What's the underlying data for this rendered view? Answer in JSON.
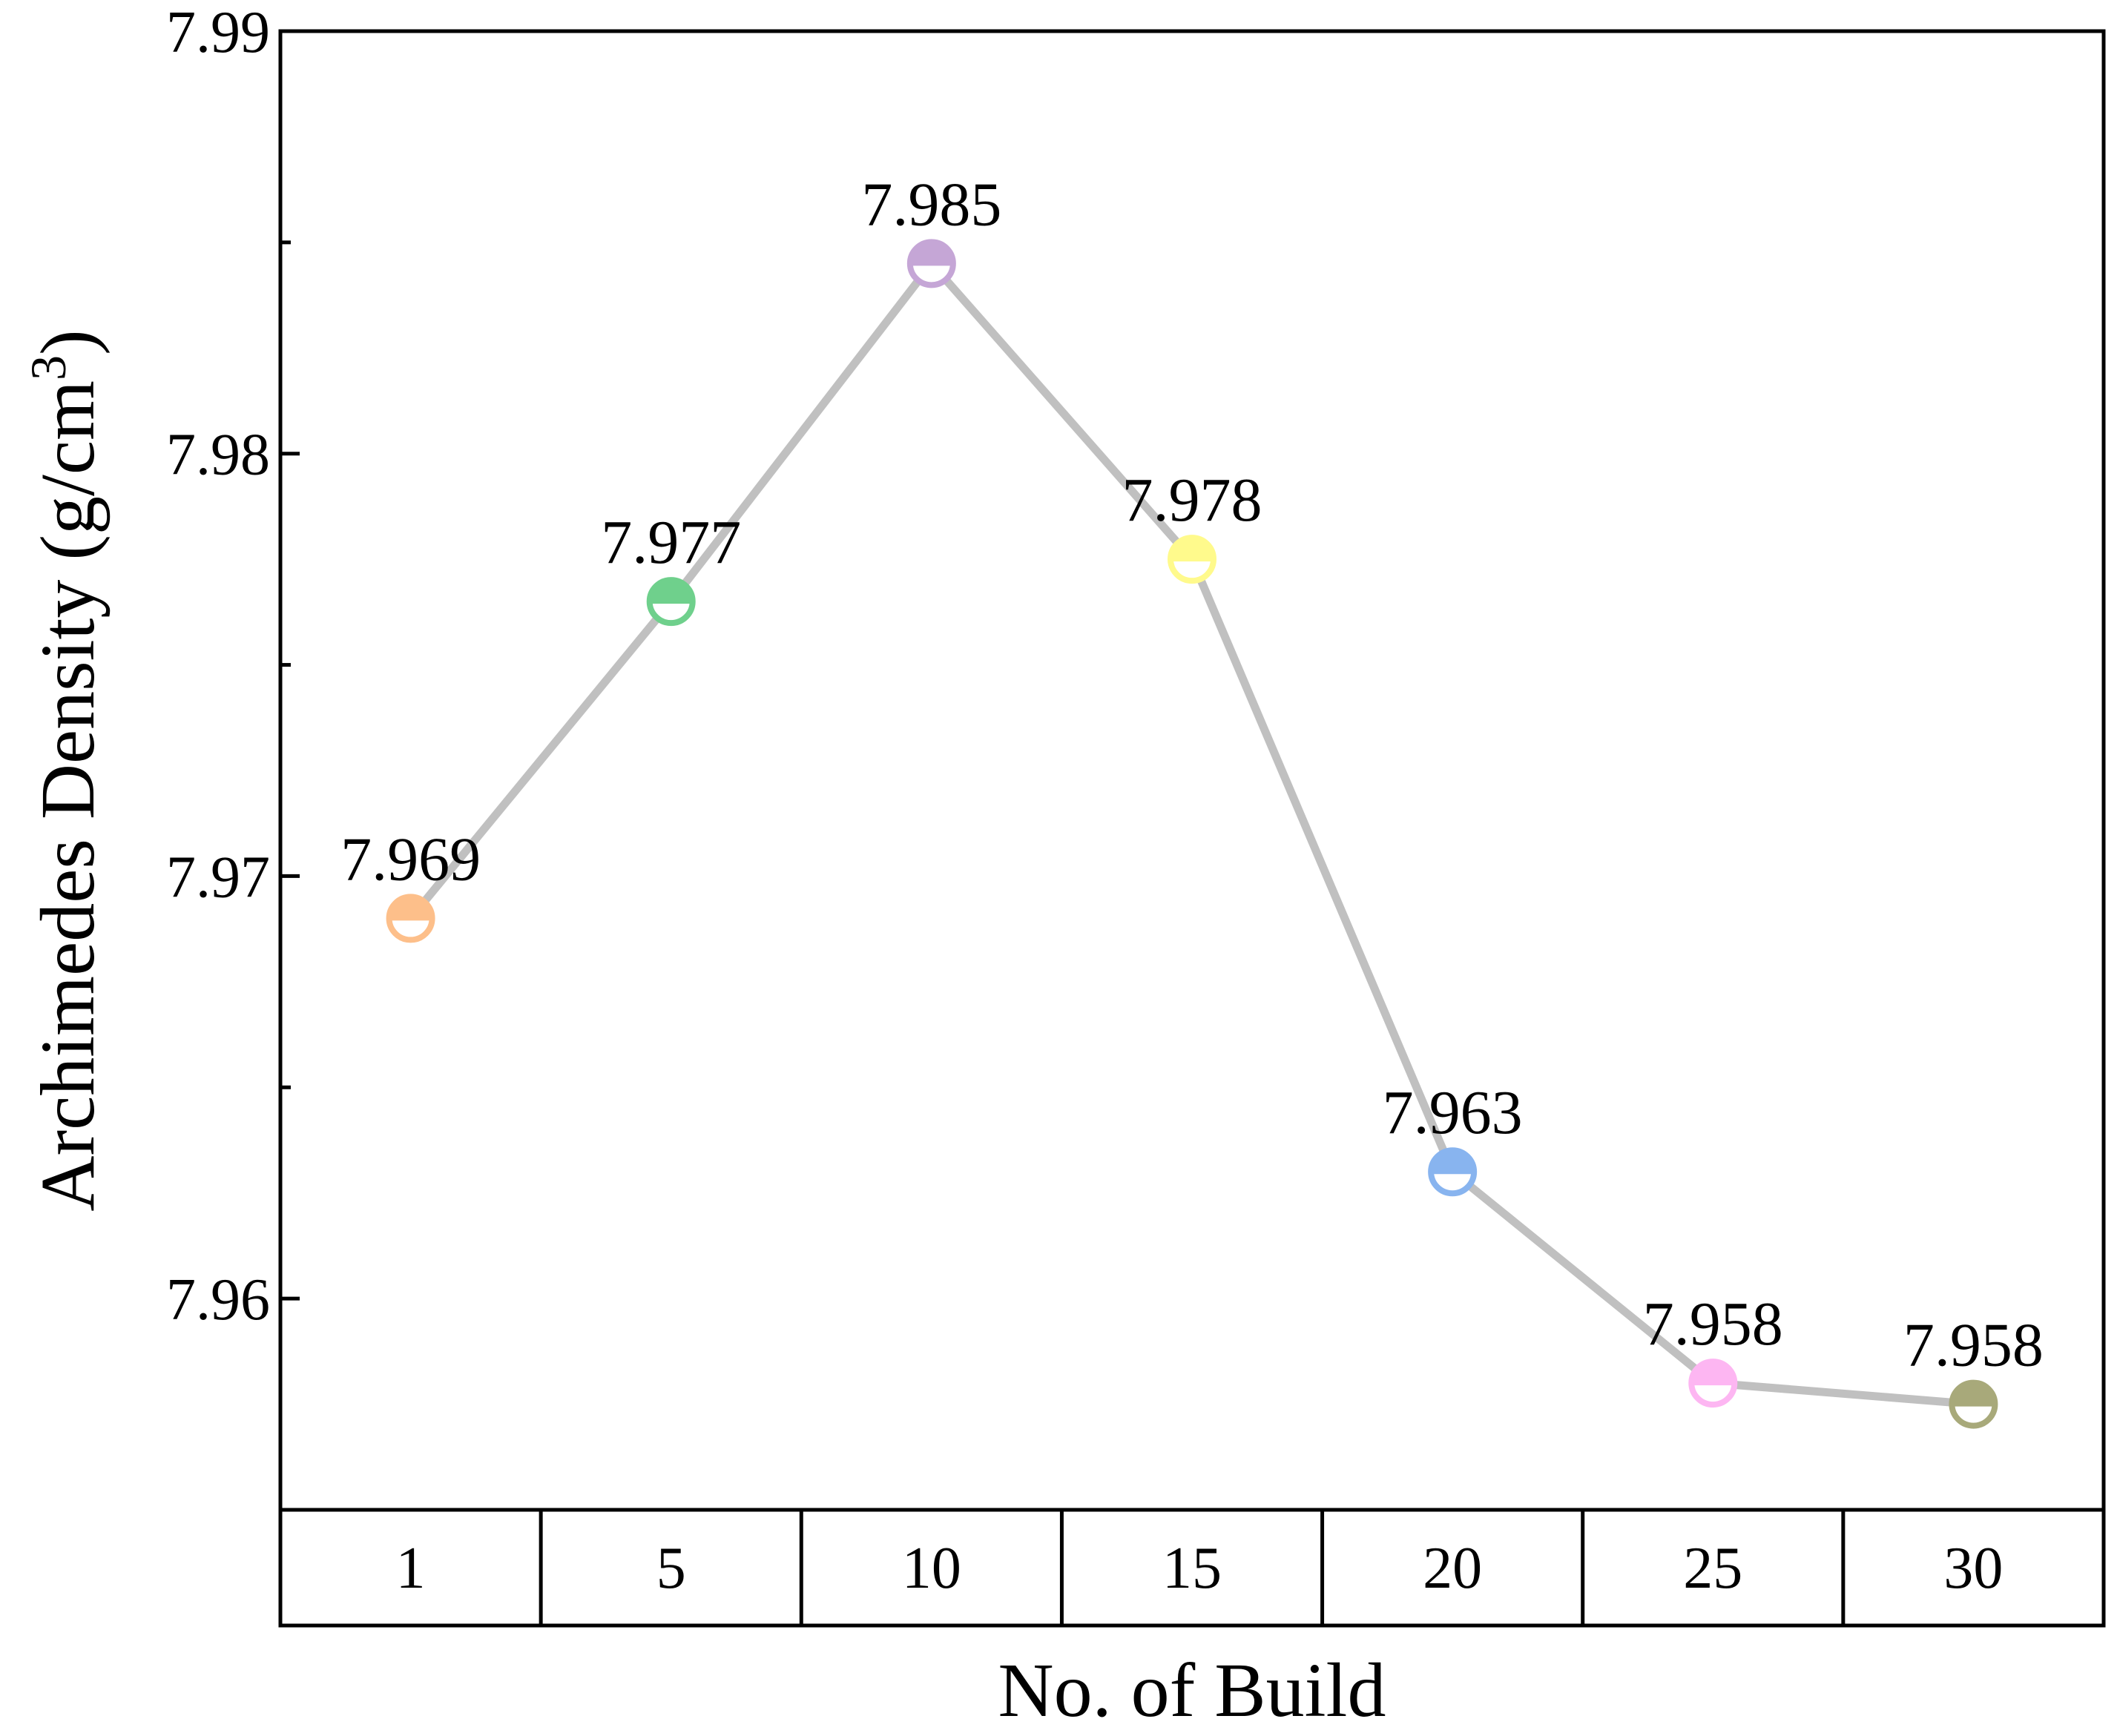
{
  "chart_data": {
    "type": "line",
    "categories": [
      "1",
      "5",
      "10",
      "15",
      "20",
      "25",
      "30"
    ],
    "series": [
      {
        "values": [
          7.969,
          7.9765,
          7.9845,
          7.9775,
          7.963,
          7.958,
          7.9575
        ],
        "labels": [
          "7.969",
          "7.977",
          "7.985",
          "7.978",
          "7.963",
          "7.958",
          "7.958"
        ],
        "line_color": "#c0c0c0",
        "point_colors": [
          "#fdbf8a",
          "#6fd08c",
          "#c5a6d6",
          "#fffa8c",
          "#88b4ef",
          "#fdb6f2",
          "#a8a97a"
        ]
      }
    ],
    "xlabel": "No. of Build",
    "ylabel": "Archimedes Density (g/cm",
    "ylabel_superscript": "3",
    "ylabel_close": ")",
    "ylim": [
      7.955,
      7.99
    ],
    "yticks": [
      "7.96",
      "7.97",
      "7.98",
      "7.99"
    ],
    "grid": false,
    "legend": "none"
  }
}
